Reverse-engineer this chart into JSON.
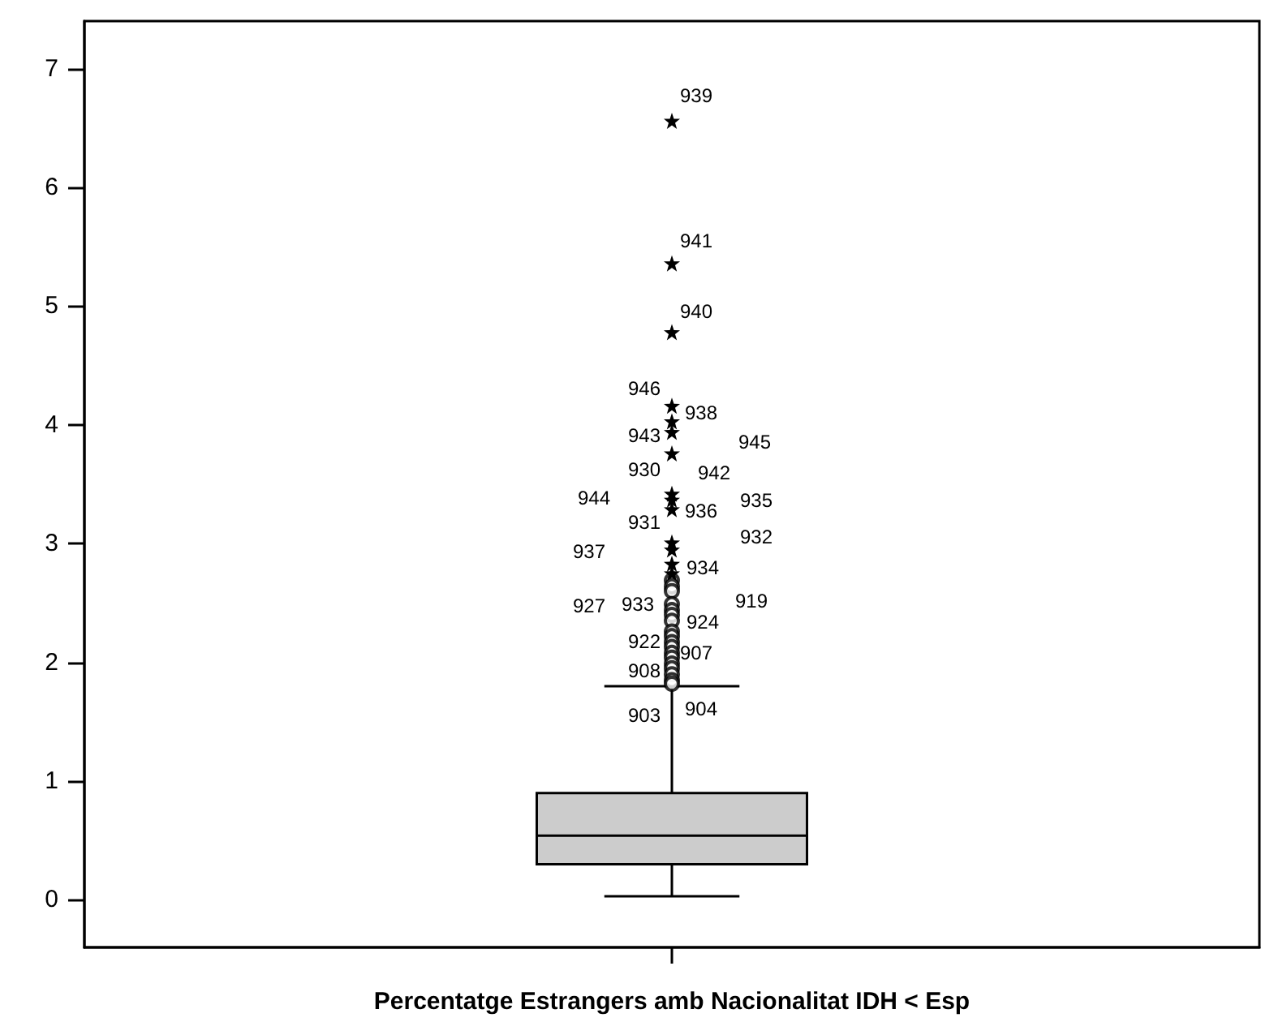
{
  "chart_data": {
    "type": "box",
    "xlabel": "Percentatge Estrangers amb Nacionalitat IDH < Esp",
    "categories": [
      null
    ],
    "ylim": [
      -0.4,
      7.4
    ],
    "yticks": [
      0,
      1,
      2,
      3,
      4,
      5,
      6,
      7
    ],
    "grid": false,
    "series": [
      {
        "color": "#cccccc",
        "marker": "circle",
        "boxes": [
          {
            "low": 0.03,
            "q1": 0.3,
            "median": 0.54,
            "q3": 0.9,
            "high": 1.8,
            "outliers": [
              2.69,
              2.64,
              2.6,
              2.49,
              2.44,
              2.4,
              2.35,
              2.26,
              2.22,
              2.17,
              2.13,
              2.08,
              2.04,
              1.99,
              1.95,
              1.9,
              1.85,
              1.82
            ]
          }
        ]
      },
      {
        "type": "scatter",
        "marker": "star",
        "color": "#000000",
        "x": [
          null,
          null,
          null,
          null,
          null,
          null,
          null,
          null,
          null,
          null,
          null,
          null,
          null,
          null
        ],
        "values": [
          6.56,
          5.36,
          4.78,
          4.16,
          4.03,
          3.94,
          3.76,
          3.42,
          3.37,
          3.29,
          3.01,
          2.95,
          2.83,
          2.75
        ]
      }
    ],
    "annotations": [
      "939",
      "941",
      "940",
      "946",
      "938",
      "943",
      "945",
      "930",
      "942",
      "944",
      "935",
      "936",
      "931",
      "932",
      "937",
      "934",
      "927",
      "933",
      "919",
      "924",
      "922",
      "907",
      "908",
      "903",
      "904"
    ]
  }
}
